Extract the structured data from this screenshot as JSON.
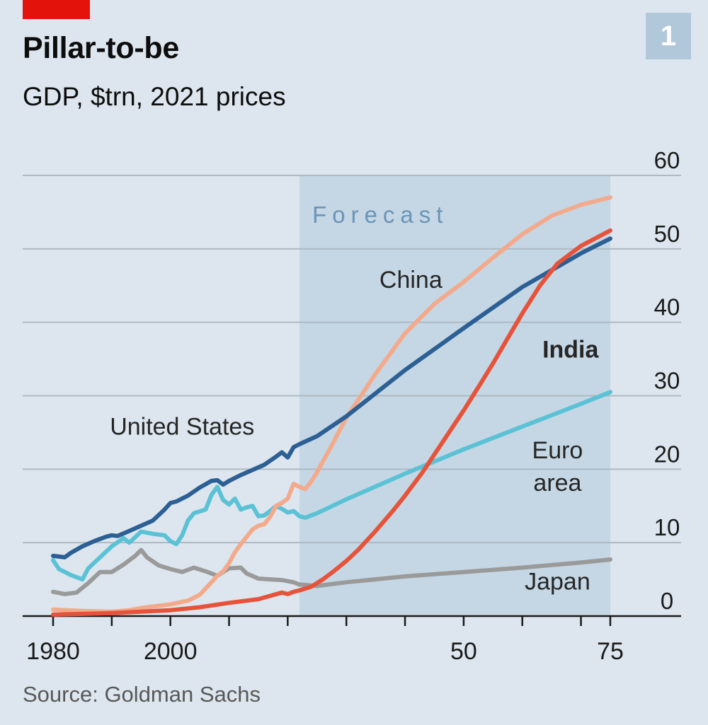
{
  "header": {
    "title": "Pillar-to-be",
    "subtitle": "GDP, $trn, 2021 prices",
    "chart_number": "1"
  },
  "footer": {
    "source": "Source: Goldman Sachs"
  },
  "colors": {
    "background": "#dde6ee",
    "forecast_shade": "#c5d7e4",
    "forecast_label": "#6a94b8",
    "gridline": "#aeb9c3",
    "axis": "#1a1a1a",
    "brand_red": "#e3120b",
    "united_states": "#2c5f94",
    "china": "#f3aa8c",
    "india": "#e6533a",
    "euro_area": "#5bc2d6",
    "japan": "#9a9a9a"
  },
  "chart_data": {
    "type": "line",
    "title": "Pillar-to-be",
    "subtitle": "GDP, $trn, 2021 prices",
    "xlabel": "",
    "ylabel": "GDP, $trn",
    "xlim": [
      1980,
      2075
    ],
    "ylim": [
      0,
      60
    ],
    "x_ticks": [
      1980,
      1990,
      2000,
      2010,
      2020,
      2030,
      2040,
      2050,
      2060,
      2070,
      2075
    ],
    "x_tick_labels": [
      {
        "x": 1980,
        "label": "1980"
      },
      {
        "x": 2000,
        "label": "2000"
      },
      {
        "x": 2050,
        "label": "50"
      },
      {
        "x": 2075,
        "label": "75"
      }
    ],
    "y_ticks": [
      0,
      10,
      20,
      30,
      40,
      50,
      60
    ],
    "y_tick_labels": [
      "0",
      "10",
      "20",
      "30",
      "40",
      "50",
      "60"
    ],
    "y_axis_side": "right",
    "grid": true,
    "forecast": {
      "label": "Forecast",
      "start": 2022,
      "end": 2075
    },
    "series": [
      {
        "key": "japan",
        "name": "Japan",
        "label_text": "Japan",
        "label_pos": [
          2066,
          3.6
        ],
        "label_anchor": "middle",
        "label_bold": false,
        "points": [
          [
            1980,
            3.3
          ],
          [
            1982,
            3.0
          ],
          [
            1984,
            3.2
          ],
          [
            1986,
            4.5
          ],
          [
            1988,
            6.0
          ],
          [
            1990,
            6.0
          ],
          [
            1992,
            7.0
          ],
          [
            1994,
            8.2
          ],
          [
            1995,
            9.0
          ],
          [
            1996,
            8.0
          ],
          [
            1998,
            6.9
          ],
          [
            2000,
            6.4
          ],
          [
            2002,
            6.0
          ],
          [
            2004,
            6.6
          ],
          [
            2006,
            6.1
          ],
          [
            2008,
            5.5
          ],
          [
            2010,
            6.5
          ],
          [
            2012,
            6.6
          ],
          [
            2013,
            5.8
          ],
          [
            2015,
            5.1
          ],
          [
            2017,
            5.0
          ],
          [
            2019,
            4.9
          ],
          [
            2021,
            4.6
          ],
          [
            2022,
            4.3
          ],
          [
            2025,
            4.1
          ],
          [
            2030,
            4.6
          ],
          [
            2040,
            5.4
          ],
          [
            2050,
            6.0
          ],
          [
            2060,
            6.6
          ],
          [
            2070,
            7.3
          ],
          [
            2075,
            7.7
          ]
        ]
      },
      {
        "key": "euro_area",
        "name": "Euro area",
        "label_text": "Euro area",
        "label_lines": [
          "Euro",
          "area"
        ],
        "label_pos": [
          2066,
          21.5
        ],
        "label_anchor": "middle",
        "label_bold": false,
        "points": [
          [
            1980,
            7.6
          ],
          [
            1981,
            6.4
          ],
          [
            1983,
            5.6
          ],
          [
            1985,
            5.0
          ],
          [
            1986,
            6.5
          ],
          [
            1988,
            8.0
          ],
          [
            1990,
            9.5
          ],
          [
            1992,
            10.6
          ],
          [
            1993,
            10.0
          ],
          [
            1995,
            11.5
          ],
          [
            1997,
            11.2
          ],
          [
            1999,
            11.0
          ],
          [
            2000,
            10.2
          ],
          [
            2001,
            9.8
          ],
          [
            2002,
            11.0
          ],
          [
            2003,
            13.0
          ],
          [
            2004,
            14.0
          ],
          [
            2006,
            14.5
          ],
          [
            2007,
            16.5
          ],
          [
            2008,
            17.6
          ],
          [
            2009,
            15.8
          ],
          [
            2010,
            15.2
          ],
          [
            2011,
            16.0
          ],
          [
            2012,
            14.5
          ],
          [
            2013,
            14.8
          ],
          [
            2014,
            15.0
          ],
          [
            2015,
            13.6
          ],
          [
            2016,
            13.7
          ],
          [
            2017,
            14.3
          ],
          [
            2018,
            15.0
          ],
          [
            2019,
            14.6
          ],
          [
            2020,
            14.1
          ],
          [
            2021,
            14.3
          ],
          [
            2022,
            13.6
          ],
          [
            2023,
            13.4
          ],
          [
            2025,
            14.0
          ],
          [
            2030,
            15.9
          ],
          [
            2040,
            19.4
          ],
          [
            2050,
            22.7
          ],
          [
            2060,
            25.8
          ],
          [
            2070,
            28.9
          ],
          [
            2075,
            30.5
          ]
        ]
      },
      {
        "key": "china",
        "name": "China",
        "label_text": "China",
        "label_pos": [
          2041,
          44.7
        ],
        "label_anchor": "middle",
        "label_bold": false,
        "points": [
          [
            1980,
            0.9
          ],
          [
            1985,
            0.7
          ],
          [
            1990,
            0.6
          ],
          [
            1993,
            0.8
          ],
          [
            1995,
            1.1
          ],
          [
            2000,
            1.6
          ],
          [
            2003,
            2.1
          ],
          [
            2005,
            2.9
          ],
          [
            2007,
            4.6
          ],
          [
            2008,
            5.5
          ],
          [
            2009,
            6.1
          ],
          [
            2010,
            7.2
          ],
          [
            2011,
            8.7
          ],
          [
            2012,
            9.8
          ],
          [
            2013,
            10.8
          ],
          [
            2014,
            11.8
          ],
          [
            2015,
            12.3
          ],
          [
            2016,
            12.5
          ],
          [
            2017,
            13.5
          ],
          [
            2018,
            15.0
          ],
          [
            2019,
            15.4
          ],
          [
            2020,
            16.0
          ],
          [
            2021,
            18.0
          ],
          [
            2022,
            17.6
          ],
          [
            2023,
            17.3
          ],
          [
            2024,
            18.3
          ],
          [
            2025,
            19.6
          ],
          [
            2027,
            22.5
          ],
          [
            2030,
            27.0
          ],
          [
            2035,
            33.0
          ],
          [
            2040,
            38.5
          ],
          [
            2045,
            42.5
          ],
          [
            2050,
            45.5
          ],
          [
            2055,
            48.8
          ],
          [
            2060,
            52.0
          ],
          [
            2065,
            54.5
          ],
          [
            2070,
            56.0
          ],
          [
            2075,
            57.0
          ]
        ]
      },
      {
        "key": "united_states",
        "name": "United States",
        "label_text": "United States",
        "label_pos": [
          2002,
          24.7
        ],
        "label_anchor": "middle",
        "label_bold": false,
        "points": [
          [
            1980,
            8.2
          ],
          [
            1982,
            8.0
          ],
          [
            1983,
            8.6
          ],
          [
            1985,
            9.5
          ],
          [
            1987,
            10.2
          ],
          [
            1989,
            10.8
          ],
          [
            1990,
            11.0
          ],
          [
            1991,
            10.9
          ],
          [
            1993,
            11.6
          ],
          [
            1995,
            12.3
          ],
          [
            1997,
            13.0
          ],
          [
            1999,
            14.5
          ],
          [
            2000,
            15.4
          ],
          [
            2001,
            15.6
          ],
          [
            2003,
            16.4
          ],
          [
            2005,
            17.5
          ],
          [
            2007,
            18.4
          ],
          [
            2008,
            18.5
          ],
          [
            2009,
            17.9
          ],
          [
            2010,
            18.4
          ],
          [
            2012,
            19.2
          ],
          [
            2014,
            19.9
          ],
          [
            2016,
            20.6
          ],
          [
            2018,
            21.7
          ],
          [
            2019,
            22.3
          ],
          [
            2020,
            21.6
          ],
          [
            2021,
            23.0
          ],
          [
            2022,
            23.4
          ],
          [
            2025,
            24.5
          ],
          [
            2030,
            27.2
          ],
          [
            2040,
            33.5
          ],
          [
            2050,
            39.2
          ],
          [
            2060,
            44.8
          ],
          [
            2070,
            49.4
          ],
          [
            2075,
            51.4
          ]
        ]
      },
      {
        "key": "india",
        "name": "India",
        "label_text": "India",
        "label_pos": [
          2073,
          35.2
        ],
        "label_anchor": "end",
        "label_bold": true,
        "points": [
          [
            1980,
            0.2
          ],
          [
            1985,
            0.3
          ],
          [
            1990,
            0.4
          ],
          [
            1995,
            0.6
          ],
          [
            2000,
            0.8
          ],
          [
            2005,
            1.2
          ],
          [
            2010,
            1.8
          ],
          [
            2015,
            2.3
          ],
          [
            2019,
            3.2
          ],
          [
            2020,
            3.0
          ],
          [
            2021,
            3.3
          ],
          [
            2022,
            3.5
          ],
          [
            2024,
            4.0
          ],
          [
            2026,
            5.0
          ],
          [
            2028,
            6.2
          ],
          [
            2030,
            7.5
          ],
          [
            2032,
            9.0
          ],
          [
            2035,
            11.6
          ],
          [
            2038,
            14.4
          ],
          [
            2040,
            16.4
          ],
          [
            2043,
            19.6
          ],
          [
            2045,
            22.0
          ],
          [
            2048,
            25.6
          ],
          [
            2050,
            28.0
          ],
          [
            2053,
            31.8
          ],
          [
            2055,
            34.4
          ],
          [
            2058,
            38.5
          ],
          [
            2060,
            41.2
          ],
          [
            2063,
            45.0
          ],
          [
            2066,
            48.0
          ],
          [
            2070,
            50.4
          ],
          [
            2075,
            52.5
          ]
        ]
      }
    ]
  }
}
